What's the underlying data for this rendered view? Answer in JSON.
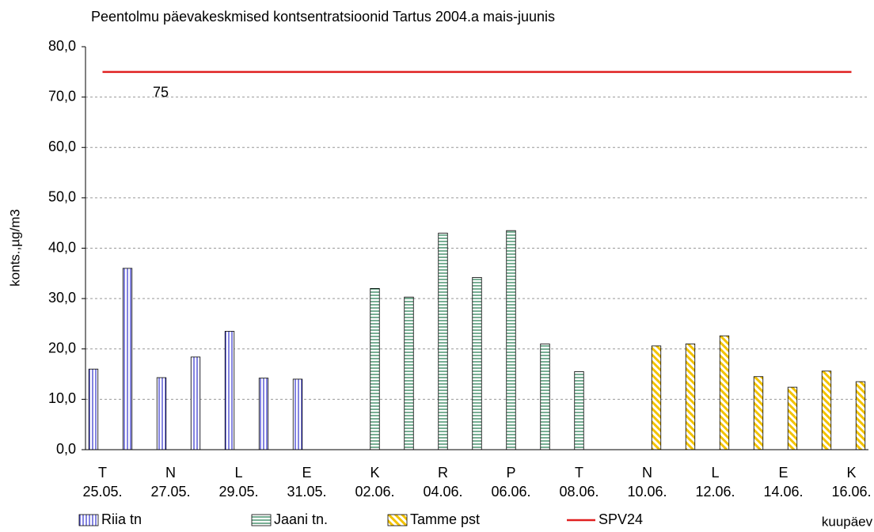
{
  "chart_data": {
    "type": "bar",
    "title": "Peentolmu päevakeskmised kontsentratsioonid Tartus 2004.a mais-juunis",
    "y_label": "konts.,µg/m3",
    "x_label": "kuupäev",
    "annotation": "75",
    "categories": [
      [
        "T",
        "25.05."
      ],
      null,
      [
        "N",
        "27.05."
      ],
      null,
      [
        "L",
        "29.05."
      ],
      null,
      [
        "E",
        "31.05."
      ],
      null,
      [
        "K",
        "02.06."
      ],
      null,
      [
        "R",
        "04.06."
      ],
      null,
      [
        "P",
        "06.06."
      ],
      null,
      [
        "T",
        "08.06."
      ],
      null,
      [
        "N",
        "10.06."
      ],
      null,
      [
        "L",
        "12.06."
      ],
      null,
      [
        "E",
        "14.06."
      ],
      null,
      [
        "K",
        "16.06."
      ]
    ],
    "series": [
      {
        "name": "Riia tn",
        "color": "#3333cc",
        "pattern": "vertical",
        "values": [
          16,
          36,
          14.3,
          18.4,
          23.5,
          14.2,
          14,
          null,
          null,
          null,
          null,
          null,
          null,
          null,
          null,
          null,
          null,
          null,
          null,
          null,
          null,
          null,
          null
        ]
      },
      {
        "name": "Jaani tn.",
        "color": "#1f7a4d",
        "pattern": "horizontal",
        "values": [
          null,
          null,
          null,
          null,
          null,
          null,
          null,
          null,
          32,
          30.3,
          43,
          34.2,
          43.5,
          21,
          15.5,
          null,
          null,
          null,
          null,
          null,
          null,
          null,
          null
        ]
      },
      {
        "name": "Tamme pst",
        "color": "#f2c200",
        "pattern": "diagonal",
        "values": [
          null,
          null,
          null,
          null,
          null,
          null,
          null,
          null,
          null,
          null,
          null,
          null,
          null,
          null,
          null,
          null,
          20.6,
          21,
          22.6,
          14.5,
          12.4,
          15.6,
          13.5
        ]
      },
      {
        "name": "SPV24",
        "color": "#e02020",
        "type": "line",
        "values": [
          75,
          75,
          75,
          75,
          75,
          75,
          75,
          75,
          75,
          75,
          75,
          75,
          75,
          75,
          75,
          75,
          75,
          75,
          75,
          75,
          75,
          75,
          75
        ]
      }
    ],
    "ylim": [
      0,
      80
    ],
    "yticks": [
      {
        "value": 0,
        "label": "0,0"
      },
      {
        "value": 10,
        "label": "10,0"
      },
      {
        "value": 20,
        "label": "20,0"
      },
      {
        "value": 30,
        "label": "30,0"
      },
      {
        "value": 40,
        "label": "40,0"
      },
      {
        "value": 50,
        "label": "50,0"
      },
      {
        "value": 60,
        "label": "60,0"
      },
      {
        "value": 70,
        "label": "70,0"
      },
      {
        "value": 80,
        "label": "80,0"
      }
    ],
    "grid": true,
    "legend": "bottom"
  }
}
